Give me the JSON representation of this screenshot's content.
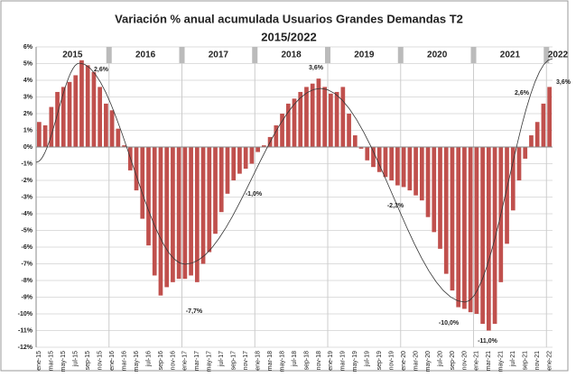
{
  "chart_data": {
    "type": "bar",
    "title": "Variación % anual acumulada Usuarios Grandes Demandas T2",
    "subtitle": "2015/2022",
    "color": "#c0504d",
    "grid": true,
    "categories": [
      "ene-15",
      null,
      "mar-15",
      null,
      "may-15",
      null,
      "jul-15",
      null,
      "sep-15",
      null,
      "nov-15",
      null,
      "ene-16",
      null,
      "mar-16",
      null,
      "may-16",
      null,
      "jul-16",
      null,
      "sep-16",
      null,
      "nov-16",
      null,
      "ene-17",
      null,
      "mar-17",
      null,
      "may-17",
      null,
      "jul-17",
      null,
      "sep-17",
      null,
      "nov-17",
      null,
      "ene-18",
      null,
      "mar-18",
      null,
      "may-18",
      null,
      "jul-18",
      null,
      "sep-18",
      null,
      "nov-18",
      null,
      "ene-19",
      null,
      "mar-19",
      null,
      "may-19",
      null,
      "jul-19",
      null,
      "sep-19",
      null,
      "nov-19",
      null,
      "ene-20",
      null,
      "mar-20",
      null,
      "may-20",
      null,
      "jul-20",
      null,
      "sep-20",
      null,
      "nov-20",
      null,
      "ene-21",
      null,
      "mar-21",
      null,
      "may-21",
      null,
      "jul-21",
      null,
      "sep-21",
      null,
      "nov-21",
      null,
      "ene-22"
    ],
    "values": [
      1.5,
      1.3,
      2.4,
      3.3,
      3.6,
      3.9,
      4.3,
      5.2,
      4.9,
      4.5,
      3.6,
      2.6,
      2.2,
      1.1,
      0.1,
      -1.4,
      -2.6,
      -4.3,
      -5.9,
      -7.7,
      -8.9,
      -8.4,
      -8.1,
      -7.9,
      -7.9,
      -7.7,
      -8.1,
      -7.0,
      -6.3,
      -5.2,
      -3.9,
      -2.8,
      -2.0,
      -1.6,
      -1.3,
      -1.0,
      -0.3,
      0.1,
      0.6,
      1.3,
      2.0,
      2.6,
      2.9,
      3.3,
      3.6,
      3.8,
      4.1,
      3.6,
      3.2,
      3.3,
      3.6,
      2.0,
      0.7,
      -0.1,
      -0.8,
      -1.2,
      -1.5,
      -1.8,
      -2.0,
      -2.3,
      -2.4,
      -2.6,
      -2.9,
      -3.2,
      -4.2,
      -5.1,
      -6.1,
      -7.6,
      -8.6,
      -9.6,
      -9.7,
      -9.9,
      -10.0,
      -10.6,
      -11.0,
      -10.6,
      -8.1,
      -5.8,
      -3.8,
      -2.0,
      -0.7,
      0.7,
      1.5,
      2.6,
      3.6
    ],
    "ylim": [
      -12,
      6
    ],
    "yticks": [
      {
        "value": -12,
        "label": "-12%"
      },
      {
        "value": -11,
        "label": "-11%"
      },
      {
        "value": -10,
        "label": "-10%"
      },
      {
        "value": -9,
        "label": "-9%"
      },
      {
        "value": -8,
        "label": "-8%"
      },
      {
        "value": -7,
        "label": "-7%"
      },
      {
        "value": -6,
        "label": "-6%"
      },
      {
        "value": -5,
        "label": "-5%"
      },
      {
        "value": -4,
        "label": "-4%"
      },
      {
        "value": -3,
        "label": "-3%"
      },
      {
        "value": -2,
        "label": "-2%"
      },
      {
        "value": -1,
        "label": "-1%"
      },
      {
        "value": 0,
        "label": "0%"
      },
      {
        "value": 1,
        "label": "1%"
      },
      {
        "value": 2,
        "label": "2%"
      },
      {
        "value": 3,
        "label": "3%"
      },
      {
        "value": 4,
        "label": "4%"
      },
      {
        "value": 5,
        "label": "5%"
      },
      {
        "value": 6,
        "label": "6%"
      }
    ],
    "year_labels": [
      "2015",
      "2016",
      "2017",
      "2018",
      "2019",
      "2020",
      "2021",
      "2022"
    ],
    "annotations": [
      "2,6%",
      "3,6%",
      "-1,0%",
      "-7,7%",
      "-2,3%",
      "-10,0%",
      "-11,0%",
      "2,6%",
      "3,6%"
    ]
  }
}
